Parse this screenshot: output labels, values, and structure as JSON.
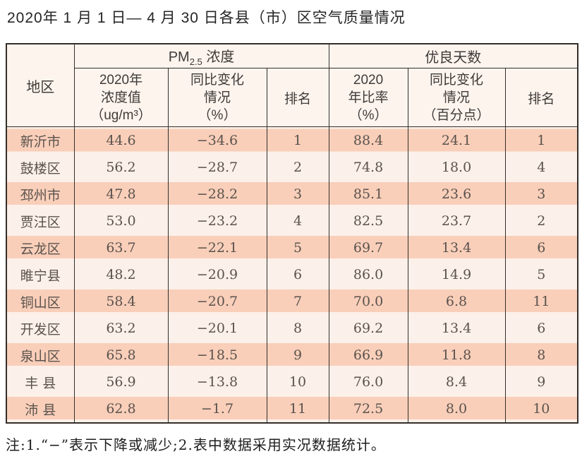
{
  "page": {
    "title": "2020年 1 月 1 日— 4 月 30 日各县（市）区空气质量情况",
    "footnote": "注:1.“−”表示下降或减少;2.表中数据采用实况数据统计。"
  },
  "colors": {
    "row_stripe": "#f9cfba",
    "row_light": "#fcf1ea",
    "header_bg": "#fdf4ee",
    "border": "#332e2a"
  },
  "table": {
    "region_header": "地区",
    "pm_group": {
      "prefix": "PM",
      "sub": "2.5",
      "suffix": " 浓度"
    },
    "good_days_group": "优良天数",
    "headers": {
      "col_pm_value": [
        "2020年",
        "浓度值",
        "（ug/m³）"
      ],
      "col_pm_change": [
        "同比变化",
        "情况",
        "（%）"
      ],
      "col_pm_rank": "排名",
      "col_ratio": [
        "2020",
        "年比率",
        "（%）"
      ],
      "col_ratio_change": [
        "同比变化",
        "情况",
        "（百分点）"
      ],
      "col_ratio_rank": "排名"
    },
    "rows": [
      {
        "region": "新沂市",
        "pm_value": "44.6",
        "pm_change": "−34.6",
        "pm_rank": "1",
        "ratio": "88.4",
        "ratio_change": "24.1",
        "ratio_rank": "1"
      },
      {
        "region": "鼓楼区",
        "pm_value": "56.2",
        "pm_change": "−28.7",
        "pm_rank": "2",
        "ratio": "74.8",
        "ratio_change": "18.0",
        "ratio_rank": "4"
      },
      {
        "region": "邳州市",
        "pm_value": "47.8",
        "pm_change": "−28.2",
        "pm_rank": "3",
        "ratio": "85.1",
        "ratio_change": "23.6",
        "ratio_rank": "3"
      },
      {
        "region": "贾汪区",
        "pm_value": "53.0",
        "pm_change": "−23.2",
        "pm_rank": "4",
        "ratio": "82.5",
        "ratio_change": "23.7",
        "ratio_rank": "2"
      },
      {
        "region": "云龙区",
        "pm_value": "63.7",
        "pm_change": "−22.1",
        "pm_rank": "5",
        "ratio": "69.7",
        "ratio_change": "13.4",
        "ratio_rank": "6"
      },
      {
        "region": "睢宁县",
        "pm_value": "48.2",
        "pm_change": "−20.9",
        "pm_rank": "6",
        "ratio": "86.0",
        "ratio_change": "14.9",
        "ratio_rank": "5"
      },
      {
        "region": "铜山区",
        "pm_value": "58.4",
        "pm_change": "−20.7",
        "pm_rank": "7",
        "ratio": "70.0",
        "ratio_change": "6.8",
        "ratio_rank": "11"
      },
      {
        "region": "开发区",
        "pm_value": "63.2",
        "pm_change": "−20.1",
        "pm_rank": "8",
        "ratio": "69.2",
        "ratio_change": "13.4",
        "ratio_rank": "6"
      },
      {
        "region": "泉山区",
        "pm_value": "65.8",
        "pm_change": "−18.5",
        "pm_rank": "9",
        "ratio": "66.9",
        "ratio_change": "11.8",
        "ratio_rank": "8"
      },
      {
        "region": "丰 县",
        "pm_value": "56.9",
        "pm_change": "−13.8",
        "pm_rank": "10",
        "ratio": "76.0",
        "ratio_change": "8.4",
        "ratio_rank": "9"
      },
      {
        "region": "沛 县",
        "pm_value": "62.8",
        "pm_change": "−1.7",
        "pm_rank": "11",
        "ratio": "72.5",
        "ratio_change": "8.0",
        "ratio_rank": "10"
      }
    ]
  }
}
